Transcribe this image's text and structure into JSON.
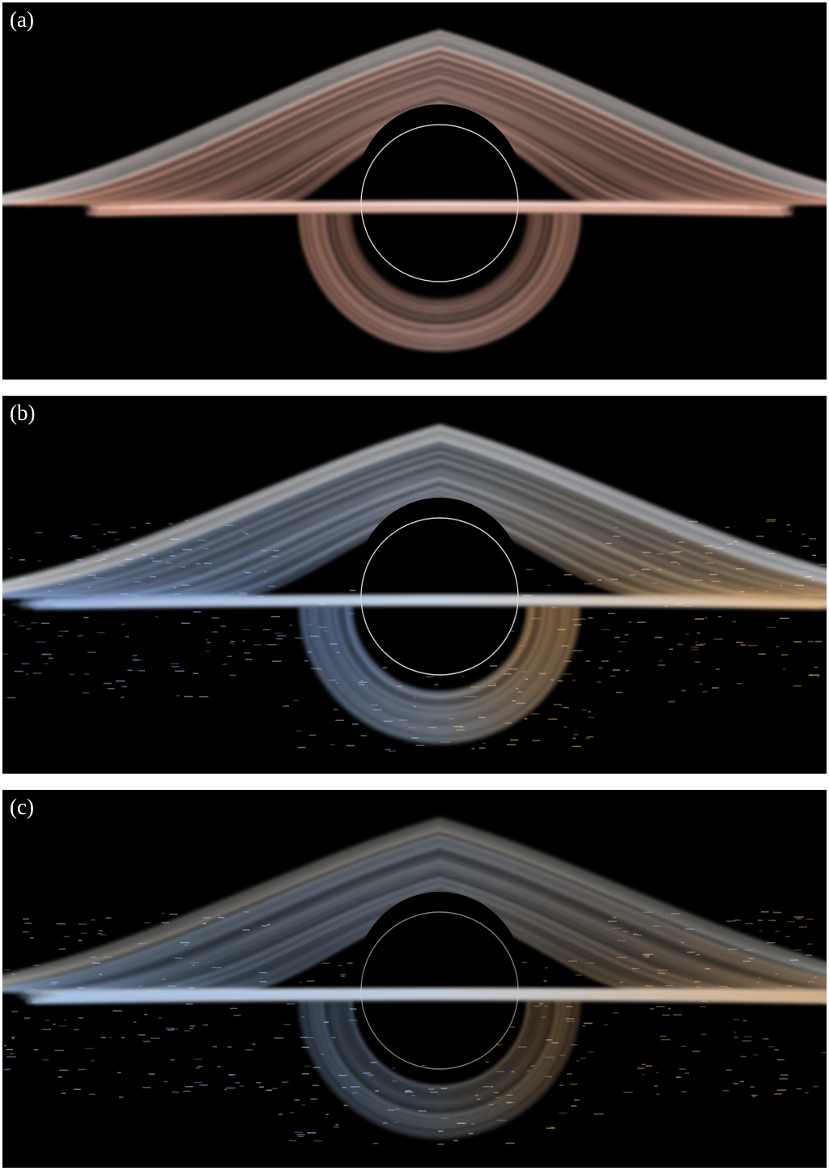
{
  "panels": [
    {
      "label": "(a)",
      "palette": {
        "main": "#f4c2b6",
        "hot": "#fff3ee",
        "left": "#e8a58c",
        "right": "#e8a58c",
        "glow": "#c46a55"
      }
    },
    {
      "label": "(b)",
      "palette": {
        "main": "#c9d6e6",
        "hot": "#f3f6fb",
        "left": "#8fb0e6",
        "right": "#e8b47a",
        "glow": "#7d93b3"
      }
    },
    {
      "label": "(c)",
      "palette": {
        "main": "#c6d2e2",
        "hot": "#f5f1ea",
        "left": "#9cc0ef",
        "right": "#d8a874",
        "glow": "#6f7f98"
      }
    }
  ]
}
